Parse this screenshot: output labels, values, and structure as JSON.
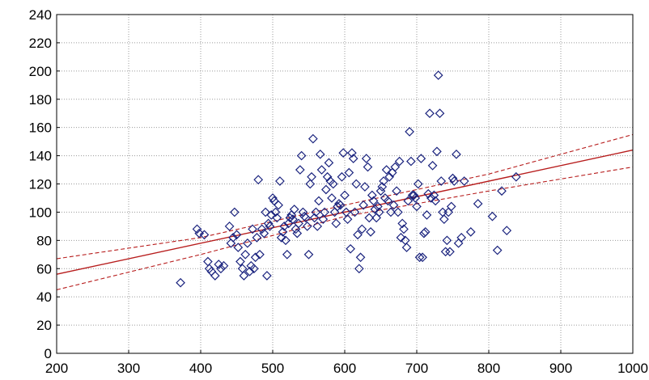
{
  "chart_data": {
    "type": "scatter",
    "title": "",
    "xlabel": "",
    "ylabel": "",
    "xlim": [
      200,
      1000
    ],
    "ylim": [
      0,
      240
    ],
    "x_ticks": [
      200,
      300,
      400,
      500,
      600,
      700,
      800,
      900,
      1000
    ],
    "y_ticks": [
      0,
      20,
      40,
      60,
      80,
      100,
      120,
      140,
      160,
      180,
      200,
      220,
      240
    ],
    "grid": "dotted",
    "legend": "none",
    "colors": {
      "background": "#ffffff",
      "grid": "#9a9a9a",
      "axis": "#000000",
      "points": "#1a237e",
      "fit_line": "#b71c1c",
      "confidence_band": "#b71c1c"
    },
    "series": [
      {
        "kind": "points",
        "marker": "diamond",
        "points": [
          [
            372,
            50
          ],
          [
            395,
            88
          ],
          [
            398,
            85
          ],
          [
            405,
            84
          ],
          [
            410,
            65
          ],
          [
            412,
            60
          ],
          [
            415,
            58
          ],
          [
            420,
            55
          ],
          [
            425,
            63
          ],
          [
            428,
            60
          ],
          [
            432,
            62
          ],
          [
            440,
            90
          ],
          [
            442,
            78
          ],
          [
            445,
            82
          ],
          [
            447,
            100
          ],
          [
            450,
            84
          ],
          [
            452,
            75
          ],
          [
            455,
            65
          ],
          [
            458,
            60
          ],
          [
            460,
            55
          ],
          [
            462,
            70
          ],
          [
            465,
            78
          ],
          [
            468,
            58
          ],
          [
            470,
            62
          ],
          [
            472,
            88
          ],
          [
            474,
            60
          ],
          [
            476,
            68
          ],
          [
            478,
            82
          ],
          [
            480,
            123
          ],
          [
            482,
            70
          ],
          [
            485,
            88
          ],
          [
            488,
            85
          ],
          [
            490,
            100
          ],
          [
            492,
            55
          ],
          [
            494,
            92
          ],
          [
            496,
            90
          ],
          [
            498,
            98
          ],
          [
            500,
            110
          ],
          [
            502,
            108
          ],
          [
            504,
            100
          ],
          [
            506,
            96
          ],
          [
            508,
            105
          ],
          [
            510,
            122
          ],
          [
            512,
            82
          ],
          [
            514,
            86
          ],
          [
            516,
            90
          ],
          [
            518,
            80
          ],
          [
            520,
            70
          ],
          [
            522,
            92
          ],
          [
            524,
            96
          ],
          [
            526,
            98
          ],
          [
            528,
            95
          ],
          [
            530,
            102
          ],
          [
            532,
            88
          ],
          [
            534,
            85
          ],
          [
            536,
            92
          ],
          [
            538,
            130
          ],
          [
            540,
            140
          ],
          [
            542,
            100
          ],
          [
            544,
            97
          ],
          [
            546,
            96
          ],
          [
            548,
            90
          ],
          [
            550,
            70
          ],
          [
            552,
            120
          ],
          [
            554,
            125
          ],
          [
            556,
            152
          ],
          [
            558,
            96
          ],
          [
            560,
            100
          ],
          [
            562,
            90
          ],
          [
            564,
            108
          ],
          [
            566,
            141
          ],
          [
            568,
            130
          ],
          [
            570,
            95
          ],
          [
            572,
            100
          ],
          [
            574,
            116
          ],
          [
            576,
            125
          ],
          [
            578,
            135
          ],
          [
            580,
            122
          ],
          [
            582,
            110
          ],
          [
            584,
            120
          ],
          [
            586,
            100
          ],
          [
            588,
            92
          ],
          [
            590,
            104
          ],
          [
            592,
            106
          ],
          [
            594,
            105
          ],
          [
            596,
            125
          ],
          [
            598,
            142
          ],
          [
            600,
            112
          ],
          [
            602,
            100
          ],
          [
            604,
            95
          ],
          [
            606,
            128
          ],
          [
            608,
            74
          ],
          [
            610,
            142
          ],
          [
            612,
            138
          ],
          [
            614,
            100
          ],
          [
            616,
            120
          ],
          [
            618,
            84
          ],
          [
            620,
            60
          ],
          [
            622,
            68
          ],
          [
            624,
            88
          ],
          [
            626,
            105
          ],
          [
            628,
            118
          ],
          [
            630,
            138
          ],
          [
            632,
            132
          ],
          [
            634,
            96
          ],
          [
            636,
            86
          ],
          [
            638,
            112
          ],
          [
            640,
            108
          ],
          [
            642,
            102
          ],
          [
            644,
            96
          ],
          [
            646,
            104
          ],
          [
            648,
            100
          ],
          [
            650,
            115
          ],
          [
            652,
            118
          ],
          [
            654,
            122
          ],
          [
            656,
            110
          ],
          [
            658,
            130
          ],
          [
            660,
            108
          ],
          [
            662,
            125
          ],
          [
            664,
            100
          ],
          [
            666,
            128
          ],
          [
            668,
            105
          ],
          [
            670,
            132
          ],
          [
            672,
            115
          ],
          [
            674,
            100
          ],
          [
            676,
            136
          ],
          [
            678,
            82
          ],
          [
            680,
            92
          ],
          [
            682,
            88
          ],
          [
            684,
            80
          ],
          [
            686,
            75
          ],
          [
            688,
            108
          ],
          [
            690,
            157
          ],
          [
            692,
            136
          ],
          [
            694,
            112
          ],
          [
            696,
            112
          ],
          [
            698,
            110
          ],
          [
            700,
            104
          ],
          [
            702,
            120
          ],
          [
            704,
            68
          ],
          [
            706,
            138
          ],
          [
            708,
            68
          ],
          [
            710,
            85
          ],
          [
            712,
            86
          ],
          [
            714,
            98
          ],
          [
            716,
            113
          ],
          [
            718,
            170
          ],
          [
            720,
            110
          ],
          [
            722,
            133
          ],
          [
            724,
            112
          ],
          [
            726,
            108
          ],
          [
            728,
            143
          ],
          [
            730,
            197
          ],
          [
            732,
            170
          ],
          [
            734,
            122
          ],
          [
            736,
            100
          ],
          [
            738,
            95
          ],
          [
            740,
            72
          ],
          [
            742,
            80
          ],
          [
            744,
            100
          ],
          [
            746,
            72
          ],
          [
            748,
            104
          ],
          [
            750,
            124
          ],
          [
            752,
            122
          ],
          [
            755,
            141
          ],
          [
            758,
            78
          ],
          [
            762,
            82
          ],
          [
            766,
            122
          ],
          [
            775,
            86
          ],
          [
            785,
            106
          ],
          [
            805,
            97
          ],
          [
            812,
            73
          ],
          [
            818,
            115
          ],
          [
            825,
            87
          ],
          [
            838,
            125
          ]
        ]
      },
      {
        "kind": "line",
        "style": "solid",
        "points": [
          [
            200,
            56
          ],
          [
            1000,
            144
          ]
        ]
      },
      {
        "kind": "line",
        "style": "dashed",
        "points": [
          [
            200,
            67
          ],
          [
            400,
            82
          ],
          [
            600,
            105
          ],
          [
            800,
            127
          ],
          [
            1000,
            155
          ]
        ]
      },
      {
        "kind": "line",
        "style": "dashed",
        "points": [
          [
            200,
            45
          ],
          [
            400,
            70
          ],
          [
            600,
            97
          ],
          [
            800,
            115
          ],
          [
            1000,
            132
          ]
        ]
      }
    ]
  }
}
